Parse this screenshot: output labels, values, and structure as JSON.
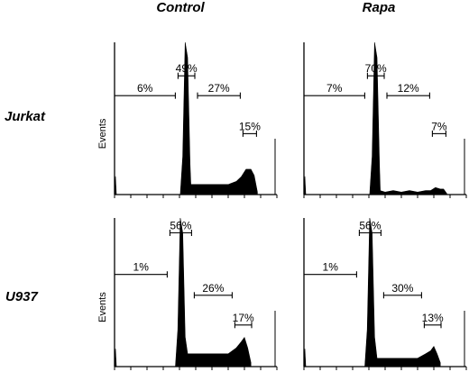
{
  "columns": [
    "Control",
    "Rapa"
  ],
  "rows": [
    "Jurkat",
    "U937"
  ],
  "chart_data": [
    {
      "type": "area",
      "column": "Control",
      "row": "Jurkat",
      "ylabel": "Events",
      "gates": [
        {
          "label": "6%",
          "from": 0,
          "to": 0.38,
          "level": 0.35
        },
        {
          "label": "49%",
          "from": 0.38,
          "to": 0.5,
          "level": 0.22
        },
        {
          "label": "27%",
          "from": 0.5,
          "to": 0.78,
          "level": 0.35
        },
        {
          "label": "15%",
          "from": 0.78,
          "to": 0.88,
          "level": 0.6
        }
      ],
      "peak": {
        "x": 0.44,
        "height": 1.0
      },
      "tail_x": [
        0.47,
        0.5,
        0.55,
        0.6,
        0.65,
        0.7,
        0.75,
        0.78,
        0.81,
        0.84,
        0.86,
        0.88
      ],
      "tail_y": [
        0.06,
        0.07,
        0.06,
        0.07,
        0.06,
        0.07,
        0.08,
        0.12,
        0.16,
        0.17,
        0.12,
        0.02
      ]
    },
    {
      "type": "area",
      "column": "Rapa",
      "row": "Jurkat",
      "ylabel": "",
      "gates": [
        {
          "label": "7%",
          "from": 0,
          "to": 0.38,
          "level": 0.35
        },
        {
          "label": "70%",
          "from": 0.38,
          "to": 0.5,
          "level": 0.22
        },
        {
          "label": "12%",
          "from": 0.5,
          "to": 0.78,
          "level": 0.35
        },
        {
          "label": "7%",
          "from": 0.78,
          "to": 0.88,
          "level": 0.6
        }
      ],
      "peak": {
        "x": 0.44,
        "height": 1.0
      },
      "tail_x": [
        0.47,
        0.5,
        0.55,
        0.6,
        0.65,
        0.7,
        0.75,
        0.78,
        0.81,
        0.84,
        0.86,
        0.88
      ],
      "tail_y": [
        0.02,
        0.02,
        0.02,
        0.02,
        0.02,
        0.02,
        0.02,
        0.03,
        0.04,
        0.04,
        0.03,
        0.01
      ]
    },
    {
      "type": "area",
      "column": "Control",
      "row": "U937",
      "ylabel": "Events",
      "gates": [
        {
          "label": "1%",
          "from": 0,
          "to": 0.33,
          "level": 0.38
        },
        {
          "label": "56%",
          "from": 0.33,
          "to": 0.48,
          "level": 0.1
        },
        {
          "label": "26%",
          "from": 0.48,
          "to": 0.73,
          "level": 0.52
        },
        {
          "label": "17%",
          "from": 0.73,
          "to": 0.85,
          "level": 0.72
        }
      ],
      "peak": {
        "x": 0.41,
        "height": 1.0
      },
      "tail_x": [
        0.45,
        0.5,
        0.55,
        0.6,
        0.65,
        0.7,
        0.75,
        0.78,
        0.8,
        0.82,
        0.84
      ],
      "tail_y": [
        0.08,
        0.09,
        0.08,
        0.09,
        0.08,
        0.09,
        0.12,
        0.17,
        0.19,
        0.13,
        0.02
      ]
    },
    {
      "type": "area",
      "column": "Rapa",
      "row": "U937",
      "ylabel": "",
      "gates": [
        {
          "label": "1%",
          "from": 0,
          "to": 0.33,
          "level": 0.38
        },
        {
          "label": "56%",
          "from": 0.33,
          "to": 0.48,
          "level": 0.1
        },
        {
          "label": "30%",
          "from": 0.48,
          "to": 0.73,
          "level": 0.52
        },
        {
          "label": "13%",
          "from": 0.73,
          "to": 0.85,
          "level": 0.72
        }
      ],
      "peak": {
        "x": 0.41,
        "height": 1.0
      },
      "tail_x": [
        0.45,
        0.5,
        0.55,
        0.6,
        0.65,
        0.7,
        0.75,
        0.78,
        0.8,
        0.82,
        0.84
      ],
      "tail_y": [
        0.05,
        0.06,
        0.05,
        0.06,
        0.05,
        0.06,
        0.08,
        0.11,
        0.13,
        0.09,
        0.02
      ]
    }
  ]
}
